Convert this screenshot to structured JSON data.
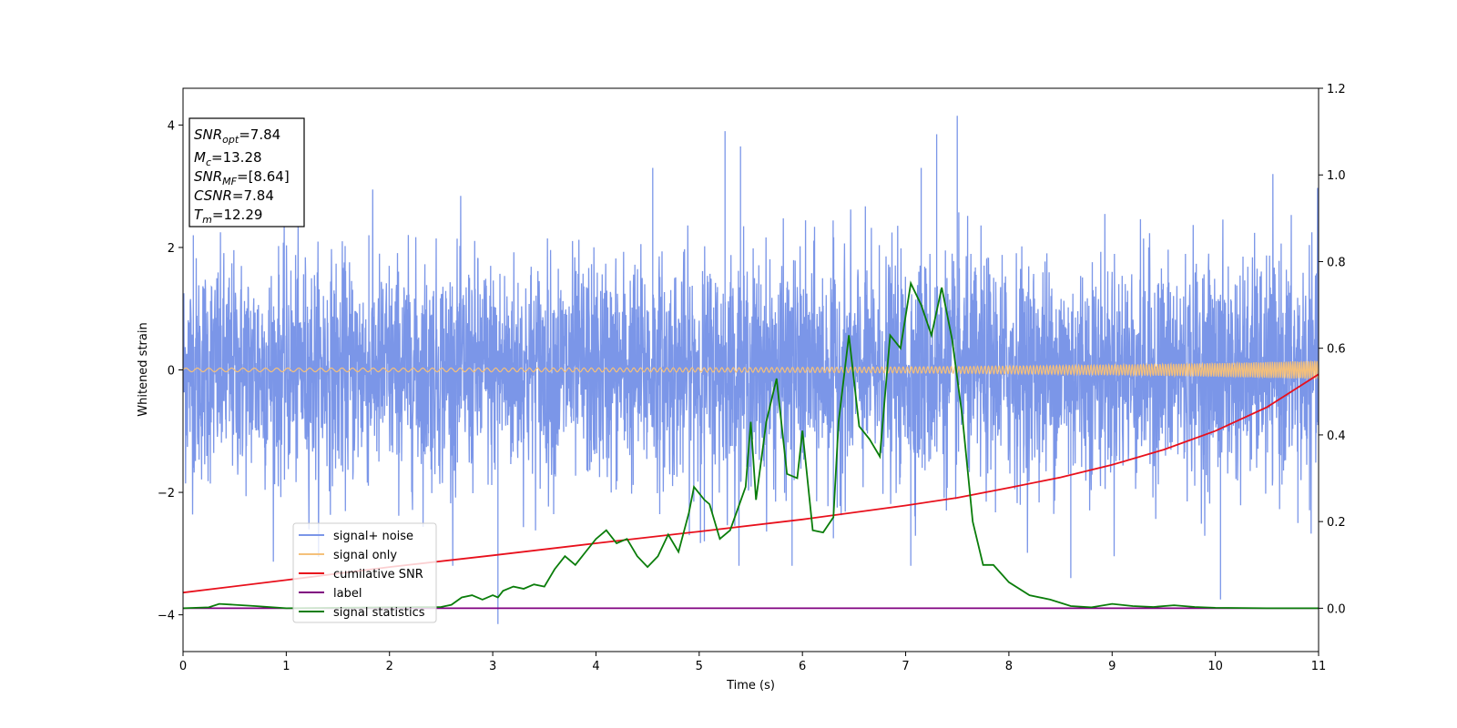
{
  "chart_data": {
    "type": "line",
    "xlabel": "Time (s)",
    "ylabel": "Whitened strain",
    "xlim": [
      0,
      11
    ],
    "ylim": [
      -4.6,
      4.6
    ],
    "y2lim": [
      -0.1,
      1.2
    ],
    "x_ticks": [
      "0",
      "1",
      "2",
      "3",
      "4",
      "5",
      "6",
      "7",
      "8",
      "9",
      "10",
      "11"
    ],
    "y_ticks": [
      "−4",
      "−2",
      "0",
      "2",
      "4"
    ],
    "y2_ticks": [
      "0.0",
      "0.2",
      "0.4",
      "0.6",
      "0.8",
      "1.0",
      "1.2"
    ],
    "info_box": [
      {
        "base": "SNR",
        "sub": "opt",
        "value": "=7.84"
      },
      {
        "base": "M",
        "sub": "c",
        "value": "=13.28"
      },
      {
        "base": "SNR",
        "sub": "MF",
        "value": "=[8.64]"
      },
      {
        "base": "CSNR",
        "sub": "",
        "value": "=7.84"
      },
      {
        "base": "T",
        "sub": "m",
        "value": "=12.29"
      }
    ],
    "legend": {
      "placement": "lower-left",
      "entries": [
        "signal+ noise",
        "signal only",
        "cumilative SNR",
        "label",
        "signal statistics"
      ]
    },
    "grid": false,
    "series": [
      {
        "name": "signal+ noise",
        "axis": "left",
        "color": "#7b96e8",
        "noise_std": 0.9,
        "spikes": [
          [
            0.1,
            2.2
          ],
          [
            1.8,
            2.2
          ],
          [
            3.05,
            -4.15
          ],
          [
            4.55,
            3.3
          ],
          [
            5.05,
            -2.8
          ],
          [
            5.25,
            3.9
          ],
          [
            5.4,
            3.65
          ],
          [
            5.9,
            -3.2
          ],
          [
            6.3,
            -2.75
          ],
          [
            7.05,
            -3.2
          ],
          [
            7.3,
            3.85
          ],
          [
            7.5,
            4.15
          ],
          [
            7.15,
            3.3
          ],
          [
            8.6,
            -3.4
          ],
          [
            10.05,
            -3.75
          ],
          [
            10.8,
            -2.5
          ]
        ]
      },
      {
        "name": "signal only",
        "axis": "left",
        "color": "#f5c07a",
        "amplitude_start": 0.03,
        "amplitude_end": 0.15
      },
      {
        "name": "cumilative SNR",
        "axis": "right",
        "color": "#e8101c",
        "x": [
          0,
          1,
          2,
          3,
          4,
          5,
          6,
          7,
          7.5,
          8,
          8.5,
          9,
          9.5,
          10,
          10.5,
          11
        ],
        "y": [
          0.036,
          0.065,
          0.095,
          0.122,
          0.15,
          0.177,
          0.205,
          0.237,
          0.255,
          0.278,
          0.302,
          0.331,
          0.366,
          0.409,
          0.464,
          0.54
        ]
      },
      {
        "name": "label",
        "axis": "right",
        "color": "#800080",
        "x": [
          0,
          11
        ],
        "y": [
          0,
          0
        ]
      },
      {
        "name": "signal statistics",
        "axis": "right",
        "color": "#0a7d0a",
        "x": [
          0,
          0.25,
          0.35,
          0.5,
          0.7,
          1.0,
          1.5,
          2.0,
          2.5,
          2.6,
          2.7,
          2.8,
          2.9,
          3.0,
          3.05,
          3.1,
          3.2,
          3.3,
          3.4,
          3.5,
          3.6,
          3.7,
          3.8,
          3.9,
          4.0,
          4.1,
          4.2,
          4.3,
          4.4,
          4.5,
          4.6,
          4.7,
          4.8,
          4.9,
          4.95,
          5.05,
          5.1,
          5.2,
          5.3,
          5.45,
          5.5,
          5.55,
          5.65,
          5.75,
          5.85,
          5.95,
          6.0,
          6.1,
          6.2,
          6.3,
          6.35,
          6.45,
          6.55,
          6.65,
          6.75,
          6.85,
          6.95,
          7.05,
          7.15,
          7.25,
          7.35,
          7.45,
          7.55,
          7.65,
          7.75,
          7.85,
          8.0,
          8.2,
          8.4,
          8.6,
          8.8,
          9.0,
          9.2,
          9.4,
          9.6,
          9.8,
          10.0,
          10.5,
          11.0
        ],
        "y": [
          0.0,
          0.002,
          0.01,
          0.008,
          0.005,
          0.0,
          0.001,
          0.002,
          0.003,
          0.008,
          0.025,
          0.03,
          0.02,
          0.03,
          0.025,
          0.04,
          0.05,
          0.045,
          0.055,
          0.05,
          0.09,
          0.12,
          0.1,
          0.13,
          0.16,
          0.18,
          0.15,
          0.16,
          0.12,
          0.095,
          0.12,
          0.17,
          0.13,
          0.22,
          0.28,
          0.25,
          0.24,
          0.16,
          0.18,
          0.28,
          0.43,
          0.25,
          0.43,
          0.53,
          0.31,
          0.3,
          0.41,
          0.18,
          0.175,
          0.21,
          0.43,
          0.63,
          0.42,
          0.39,
          0.35,
          0.63,
          0.6,
          0.75,
          0.7,
          0.63,
          0.74,
          0.62,
          0.44,
          0.2,
          0.1,
          0.1,
          0.06,
          0.03,
          0.02,
          0.005,
          0.002,
          0.01,
          0.005,
          0.003,
          0.007,
          0.003,
          0.001,
          0.0,
          0.0
        ]
      }
    ]
  }
}
